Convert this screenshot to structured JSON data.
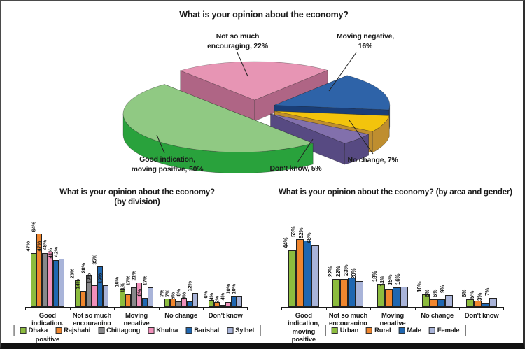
{
  "chart_data": [
    {
      "type": "pie",
      "title": "What is your opinion about the economy?",
      "value_suffix": "%",
      "slices": [
        {
          "label": "Not so much encouraging",
          "value": 22,
          "callout": "Not so much\nencouraging, 22%",
          "color_top": "#e795b4",
          "color_side": "#af6585"
        },
        {
          "label": "Moving negative",
          "value": 16,
          "callout": "Moving negative,\n16%",
          "color_top": "#2e63a8",
          "color_side": "#1a3e77"
        },
        {
          "label": "No change",
          "value": 7,
          "callout": "No change, 7%",
          "color_top": "#f3c40c",
          "color_side": "#bf8e2f"
        },
        {
          "label": "Don't know",
          "value": 5,
          "callout": "Don't know, 5%",
          "color_top": "#8270ac",
          "color_side": "#574a82"
        },
        {
          "label": "Good indication, moving positive",
          "value": 50,
          "callout": "Good indication,\nmoving positive, 50%",
          "color_top": "#90c983",
          "color_side": "#29a23c"
        }
      ]
    },
    {
      "type": "bar",
      "title": "What is your opinion about the economy?",
      "subtitle": "(by division)",
      "categories": [
        "Good indication,\nmoving positive",
        "Not so much\nencouraging",
        "Moving\nnegative",
        "No change",
        "Don't know"
      ],
      "series": [
        {
          "name": "Dhaka",
          "color": "#8cbc3e",
          "values": [
            47,
            23,
            16,
            7,
            6
          ]
        },
        {
          "name": "Rajshahi",
          "color": "#f0862e",
          "values": [
            64,
            14,
            11,
            7,
            4
          ]
        },
        {
          "name": "Chittagong",
          "color": "#87878a",
          "values": [
            47,
            28,
            17,
            5,
            2
          ]
        },
        {
          "name": "Khulna",
          "color": "#f190bb",
          "values": [
            48,
            19,
            21,
            8,
            4
          ]
        },
        {
          "name": "Barishal",
          "color": "#1f67b1",
          "values": [
            41,
            35,
            8,
            5,
            10
          ]
        },
        {
          "name": "Sylhet",
          "color": "#a9b4d9",
          "values": [
            42,
            19,
            17,
            12,
            10
          ]
        }
      ],
      "ylim": [
        0,
        70
      ],
      "value_suffix": "%",
      "legend_position": "bottom",
      "grid": false
    },
    {
      "type": "bar",
      "title": "What is your opinion about the economy? (by area and gender)",
      "subtitle": "",
      "categories": [
        "Good indication,\nmoving positive",
        "Not so much\nencouraging",
        "Moving\nnegative",
        "No change",
        "Don't know"
      ],
      "series": [
        {
          "name": "Urban",
          "color": "#8cbc3e",
          "values": [
            44,
            22,
            18,
            10,
            6
          ]
        },
        {
          "name": "Rural",
          "color": "#f0862e",
          "values": [
            53,
            22,
            14,
            6,
            5
          ]
        },
        {
          "name": "Male",
          "color": "#1f67b1",
          "values": [
            52,
            23,
            15,
            6,
            3
          ]
        },
        {
          "name": "Female",
          "color": "#a9b4d9",
          "values": [
            48,
            20,
            16,
            9,
            7
          ]
        }
      ],
      "ylim": [
        0,
        60
      ],
      "value_suffix": "%",
      "legend_position": "bottom",
      "grid": false
    }
  ]
}
